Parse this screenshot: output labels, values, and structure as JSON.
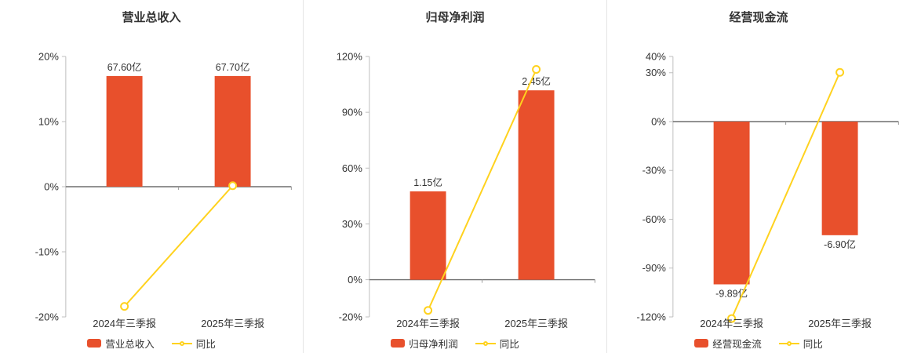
{
  "page": {
    "background": "#ffffff",
    "divider_color": "#e4e4e4"
  },
  "chart_data": [
    {
      "type": "bar",
      "title": "营业总收入",
      "categories": [
        "2024年三季报",
        "2025年三季报"
      ],
      "bar_series": {
        "name": "营业总收入",
        "value_labels": [
          "67.60亿",
          "67.70亿"
        ],
        "plotted_pct": [
          17.0,
          17.0
        ]
      },
      "line_series": {
        "name": "同比",
        "values_pct": [
          -18.39,
          0.15
        ]
      },
      "y_ticks": [
        20,
        10,
        0,
        -10,
        -20
      ],
      "ylim": [
        -20,
        20
      ],
      "y_tick_suffix": "%",
      "bar_color": "#e8502c",
      "line_color": "#ffd21e",
      "legend_position": "bottom",
      "grid": false
    },
    {
      "type": "bar",
      "title": "归母净利润",
      "categories": [
        "2024年三季报",
        "2025年三季报"
      ],
      "bar_series": {
        "name": "归母净利润",
        "value_labels": [
          "1.15亿",
          "2.45亿"
        ],
        "plotted_pct": [
          47.5,
          101.8
        ]
      },
      "line_series": {
        "name": "同比",
        "values_pct": [
          -16.5,
          113.04
        ]
      },
      "y_ticks": [
        120,
        90,
        60,
        30,
        0,
        -20
      ],
      "ylim": [
        -20,
        120
      ],
      "y_tick_suffix": "%",
      "bar_color": "#e8502c",
      "line_color": "#ffd21e",
      "legend_position": "bottom",
      "grid": false
    },
    {
      "type": "bar",
      "title": "经营现金流",
      "categories": [
        "2024年三季报",
        "2025年三季报"
      ],
      "bar_series": {
        "name": "经营现金流",
        "value_labels": [
          "-9.89亿",
          "-6.90亿"
        ],
        "plotted_pct": [
          -100,
          -69.8
        ]
      },
      "line_series": {
        "name": "同比",
        "values_pct": [
          -121.0,
          30.23
        ]
      },
      "y_ticks": [
        40,
        30,
        0,
        -30,
        -60,
        -90,
        -120
      ],
      "ylim": [
        -120,
        40
      ],
      "y_tick_suffix": "%",
      "bar_color": "#e8502c",
      "line_color": "#ffd21e",
      "legend_position": "bottom",
      "grid": false
    }
  ]
}
